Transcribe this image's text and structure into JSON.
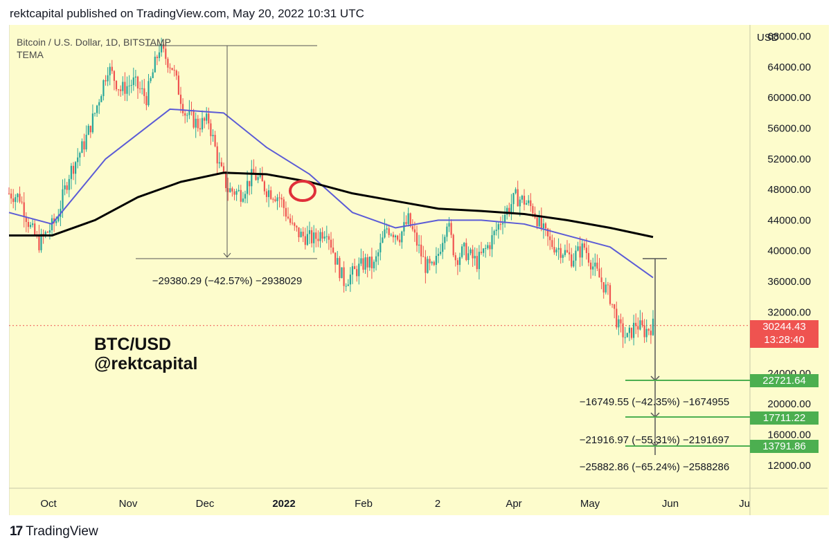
{
  "header": {
    "text": "rektcapital published on TradingView.com, May 20, 2022 10:31 UTC"
  },
  "symbol": {
    "line1": "Bitcoin / U.S. Dollar, 1D, BITSTAMP",
    "line2": "TEMA"
  },
  "overlay": {
    "line1": "BTC/USD",
    "line2": "@rektcapital"
  },
  "footer": {
    "logo": "17",
    "brand": "TradingView"
  },
  "colors": {
    "background": "#fdfccc",
    "up": "#26a69a",
    "down": "#ef5350",
    "tema_fast": "#5b5bd6",
    "tema_slow": "#000000",
    "green_level": "#4caf50",
    "marker": "#e0303a"
  },
  "chart_data": {
    "type": "candlestick",
    "symbol": "Bitcoin / U.S. Dollar, 1D, BITSTAMP",
    "indicator": "TEMA",
    "y_axis_label": "USD",
    "ylim": [
      9000,
      69500
    ],
    "y_ticks": [
      "68000.00",
      "64000.00",
      "60000.00",
      "56000.00",
      "52000.00",
      "48000.00",
      "44000.00",
      "40000.00",
      "36000.00",
      "32000.00",
      "24000.00",
      "20000.00",
      "16000.00",
      "12000.00"
    ],
    "x_ticks": [
      "Oct",
      "Nov",
      "Dec",
      "2022",
      "Feb",
      "2",
      "Apr",
      "May",
      "Jun",
      "Ju"
    ],
    "current_price": "30244.43",
    "countdown": "13:28:40",
    "levels": [
      {
        "label": "22721.64",
        "value": 22721.64
      },
      {
        "label": "17711.22",
        "value": 17711.22
      },
      {
        "label": "13791.86",
        "value": 13791.86
      }
    ],
    "measurements": [
      "−29380.29 (−42.57%) −2938029",
      "−16749.55 (−42.35%) −1674955",
      "−21916.97 (−55.31%) −2191697",
      "−25882.86 (−65.24%) −2588286"
    ],
    "price_path": [
      [
        0,
        47500
      ],
      [
        5,
        47000
      ],
      [
        10,
        43000
      ],
      [
        14,
        41000
      ],
      [
        18,
        42500
      ],
      [
        22,
        44000
      ],
      [
        28,
        50000
      ],
      [
        35,
        54000
      ],
      [
        40,
        58000
      ],
      [
        46,
        64000
      ],
      [
        52,
        61000
      ],
      [
        58,
        62000
      ],
      [
        64,
        60000
      ],
      [
        70,
        66500
      ],
      [
        76,
        64000
      ],
      [
        82,
        58000
      ],
      [
        88,
        56500
      ],
      [
        93,
        57000
      ],
      [
        98,
        51000
      ],
      [
        102,
        48000
      ],
      [
        108,
        47500
      ],
      [
        114,
        50000
      ],
      [
        120,
        48000
      ],
      [
        126,
        47000
      ],
      [
        132,
        43000
      ],
      [
        136,
        42000
      ],
      [
        142,
        41500
      ],
      [
        148,
        43000
      ],
      [
        152,
        39000
      ],
      [
        156,
        36000
      ],
      [
        160,
        37000
      ],
      [
        166,
        38500
      ],
      [
        170,
        38000
      ],
      [
        176,
        43000
      ],
      [
        182,
        42000
      ],
      [
        186,
        44000
      ],
      [
        190,
        41000
      ],
      [
        194,
        38000
      ],
      [
        198,
        37500
      ],
      [
        204,
        44000
      ],
      [
        208,
        39000
      ],
      [
        212,
        40000
      ],
      [
        218,
        38500
      ],
      [
        224,
        41000
      ],
      [
        230,
        44500
      ],
      [
        236,
        47000
      ],
      [
        240,
        46500
      ],
      [
        244,
        45500
      ],
      [
        248,
        43000
      ],
      [
        252,
        41000
      ],
      [
        258,
        40000
      ],
      [
        262,
        39000
      ],
      [
        268,
        40500
      ],
      [
        272,
        38000
      ],
      [
        276,
        36000
      ],
      [
        280,
        34000
      ],
      [
        284,
        30000
      ],
      [
        288,
        28500
      ],
      [
        292,
        30500
      ],
      [
        296,
        29500
      ],
      [
        300,
        30244
      ]
    ],
    "tema_fast": [
      [
        0,
        45000
      ],
      [
        20,
        43500
      ],
      [
        45,
        52000
      ],
      [
        75,
        58500
      ],
      [
        100,
        58000
      ],
      [
        120,
        53500
      ],
      [
        140,
        50000
      ],
      [
        160,
        45000
      ],
      [
        180,
        43000
      ],
      [
        200,
        44000
      ],
      [
        220,
        44000
      ],
      [
        240,
        43500
      ],
      [
        260,
        42000
      ],
      [
        280,
        40500
      ],
      [
        300,
        36500
      ]
    ],
    "tema_slow": [
      [
        0,
        42000
      ],
      [
        20,
        42000
      ],
      [
        40,
        44000
      ],
      [
        60,
        47000
      ],
      [
        80,
        49000
      ],
      [
        100,
        50200
      ],
      [
        120,
        50000
      ],
      [
        140,
        49000
      ],
      [
        160,
        47500
      ],
      [
        180,
        46500
      ],
      [
        200,
        45500
      ],
      [
        220,
        45200
      ],
      [
        240,
        44800
      ],
      [
        260,
        44000
      ],
      [
        280,
        43000
      ],
      [
        300,
        41800
      ]
    ]
  }
}
